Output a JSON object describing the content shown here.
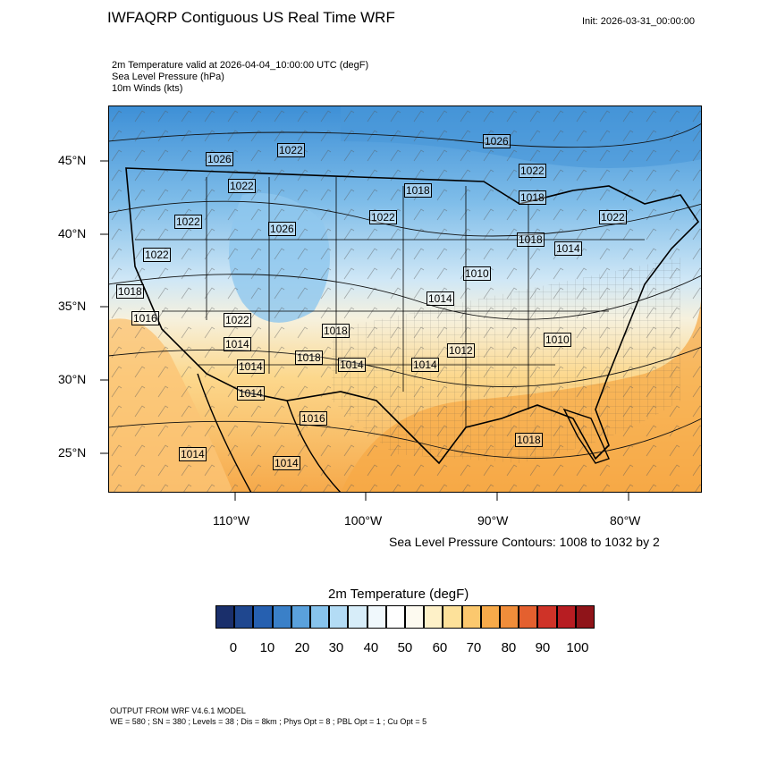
{
  "header": {
    "title": "IWFAQRP Contiguous US Real Time WRF",
    "init": "Init: 2026-03-31_00:00:00",
    "fields": [
      "2m Temperature valid at 2026-04-04_10:00:00 UTC   (degF)",
      "Sea Level Pressure   (hPa)",
      "10m Winds   (kts)"
    ]
  },
  "map": {
    "lat_labels": [
      "45°N",
      "40°N",
      "35°N",
      "30°N",
      "25°N"
    ],
    "lon_labels": [
      "110°W",
      "100°W",
      "90°W",
      "80°W"
    ],
    "contour_note": "Sea Level Pressure Contours: 1008 to 1032 by 2",
    "pressure_labels": [
      "1026",
      "1022",
      "1022",
      "1018",
      "1022",
      "1022",
      "1018",
      "1022",
      "1026",
      "1026",
      "1022",
      "1010",
      "1022",
      "1018",
      "1016",
      "1018",
      "1014",
      "1022",
      "1018",
      "1014",
      "1014",
      "1014",
      "1016",
      "1014",
      "1014",
      "1018",
      "1014",
      "1014",
      "1012",
      "1010",
      "1018",
      "1014"
    ],
    "colors": {
      "land_ocean_border": "#000000",
      "cold": "#5aa8e0",
      "warm": "#f7b14e"
    }
  },
  "colorbar": {
    "title": "2m Temperature  (degF)",
    "labels": [
      "0",
      "10",
      "20",
      "30",
      "40",
      "50",
      "60",
      "70",
      "80",
      "90",
      "100"
    ],
    "colors": [
      "#1a2f6b",
      "#1f478f",
      "#2660b0",
      "#3a80c8",
      "#5aa1dc",
      "#87c3ec",
      "#b3dcf5",
      "#d7edf9",
      "#f0f8fc",
      "#ffffff",
      "#fdfaf0",
      "#fef1c8",
      "#fde19a",
      "#fbc86e",
      "#f7aa4a",
      "#f08d3a",
      "#e4602f",
      "#cf3328",
      "#b71d22",
      "#8f1419"
    ]
  },
  "footer": {
    "line1": "OUTPUT FROM WRF V4.6.1 MODEL",
    "line2": "WE = 580 ; SN = 380 ; Levels = 38 ; Dis = 8km ; Phys Opt = 8 ; PBL Opt = 1 ; Cu Opt = 5"
  }
}
